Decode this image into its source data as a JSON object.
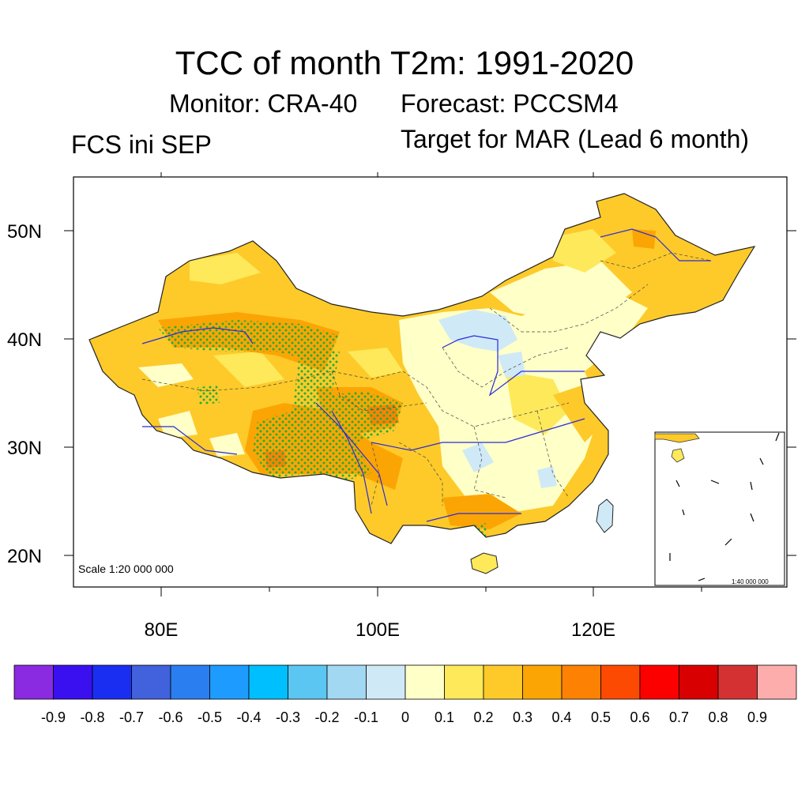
{
  "figure": {
    "title": "TCC of month T2m: 1991-2020",
    "monitor": "Monitor: CRA-40",
    "forecast": "Forecast: PCCSM4",
    "initialization": "FCS ini SEP",
    "target": "Target for MAR (Lead 6 month)"
  },
  "map": {
    "region": "China",
    "lat_ticks": [
      "50N",
      "40N",
      "30N",
      "20N"
    ],
    "lon_ticks": [
      "80E",
      "100E",
      "120E"
    ],
    "scale_label": "Scale 1:20 000 000",
    "inset_scale_label": "1:40 000 000",
    "stipple_color": "#1fae3a",
    "river_color": "#2b2bd6"
  },
  "colorbar": {
    "labels": [
      "-0.9",
      "-0.8",
      "-0.7",
      "-0.6",
      "-0.5",
      "-0.4",
      "-0.3",
      "-0.2",
      "-0.1",
      "0",
      "0.1",
      "0.2",
      "0.3",
      "0.4",
      "0.5",
      "0.6",
      "0.7",
      "0.8",
      "0.9"
    ],
    "colors": [
      "#8a2be2",
      "#3a10f0",
      "#1a2ef2",
      "#4162dc",
      "#2a7ef0",
      "#1e9bff",
      "#00bfff",
      "#5cc6f2",
      "#a3d8f2",
      "#cfe9f7",
      "#ffffc8",
      "#fde95a",
      "#fdca2a",
      "#fba504",
      "#fd8203",
      "#fd4a02",
      "#fc0000",
      "#d80000",
      "#d43232",
      "#feadad"
    ]
  }
}
